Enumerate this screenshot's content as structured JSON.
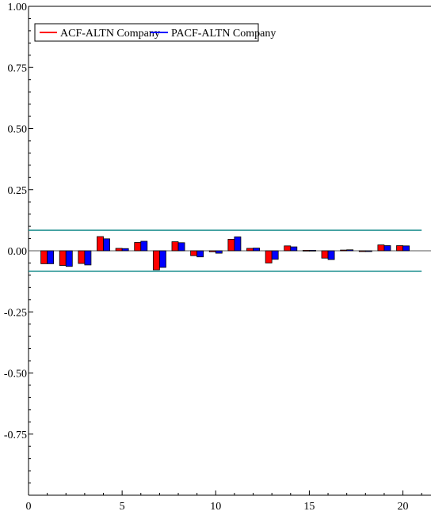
{
  "chart_data": {
    "type": "bar",
    "title": "",
    "xlabel": "",
    "ylabel": "",
    "xlim": [
      0,
      21.5
    ],
    "ylim": [
      -1.0,
      1.0
    ],
    "x_ticks": [
      0,
      5,
      10,
      15,
      20
    ],
    "y_ticks": [
      1.0,
      0.75,
      0.5,
      0.25,
      0.0,
      -0.25,
      -0.5,
      -0.75
    ],
    "x_tick_labels": [
      "0",
      "5",
      "10",
      "15",
      "20"
    ],
    "y_tick_labels": [
      "1.00",
      "0.75",
      "0.50",
      "0.25",
      "0.00",
      "-0.25",
      "-0.50",
      "-0.75"
    ],
    "lags": [
      1,
      2,
      3,
      4,
      5,
      6,
      7,
      8,
      9,
      10,
      11,
      12,
      13,
      14,
      15,
      16,
      17,
      18,
      19,
      20
    ],
    "series": [
      {
        "name": "ACF-ALTN Company",
        "color": "#ff0000",
        "values": [
          -0.053,
          -0.06,
          -0.052,
          0.058,
          0.01,
          0.034,
          -0.078,
          0.037,
          -0.02,
          -0.004,
          0.047,
          0.01,
          -0.05,
          0.02,
          0.002,
          -0.03,
          0.003,
          -0.002,
          0.024,
          0.021
        ]
      },
      {
        "name": "PACF-ALTN Company",
        "color": "#0000ff",
        "values": [
          -0.053,
          -0.064,
          -0.058,
          0.049,
          0.009,
          0.039,
          -0.068,
          0.033,
          -0.025,
          -0.01,
          0.057,
          0.011,
          -0.035,
          0.016,
          0.002,
          -0.036,
          0.004,
          -0.001,
          0.021,
          0.02
        ]
      }
    ],
    "confidence_band": {
      "upper": 0.084,
      "lower": -0.084,
      "color": "#008080"
    },
    "grid": false,
    "legend_position": "top-left"
  }
}
